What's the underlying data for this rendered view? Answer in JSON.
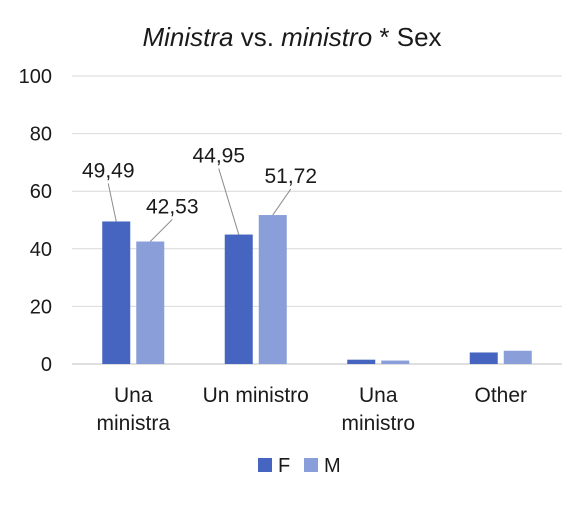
{
  "chart_data": {
    "type": "bar",
    "title": {
      "part1": "Ministra",
      "part2": " vs. ",
      "part3": "ministro",
      "part4": " * Sex"
    },
    "categories": [
      [
        "Una",
        "ministra"
      ],
      [
        "Un ministro"
      ],
      [
        "Una",
        "ministro"
      ],
      [
        "Other"
      ]
    ],
    "series": [
      {
        "name": "F",
        "color": "#4565c0",
        "values": [
          49.49,
          44.95,
          1.5,
          4.0
        ]
      },
      {
        "name": "M",
        "color": "#8a9fd9",
        "values": [
          42.53,
          51.72,
          1.2,
          4.6
        ]
      }
    ],
    "data_labels": [
      {
        "series": 0,
        "category": 0,
        "text": "49,49"
      },
      {
        "series": 1,
        "category": 0,
        "text": "42,53"
      },
      {
        "series": 0,
        "category": 1,
        "text": "44,95"
      },
      {
        "series": 1,
        "category": 1,
        "text": "51,72"
      }
    ],
    "yticks": [
      "0",
      "20",
      "40",
      "60",
      "80",
      "100"
    ],
    "ylim": [
      0,
      100
    ],
    "grid": true,
    "legend_position": "bottom",
    "xlabel": "",
    "ylabel": ""
  }
}
